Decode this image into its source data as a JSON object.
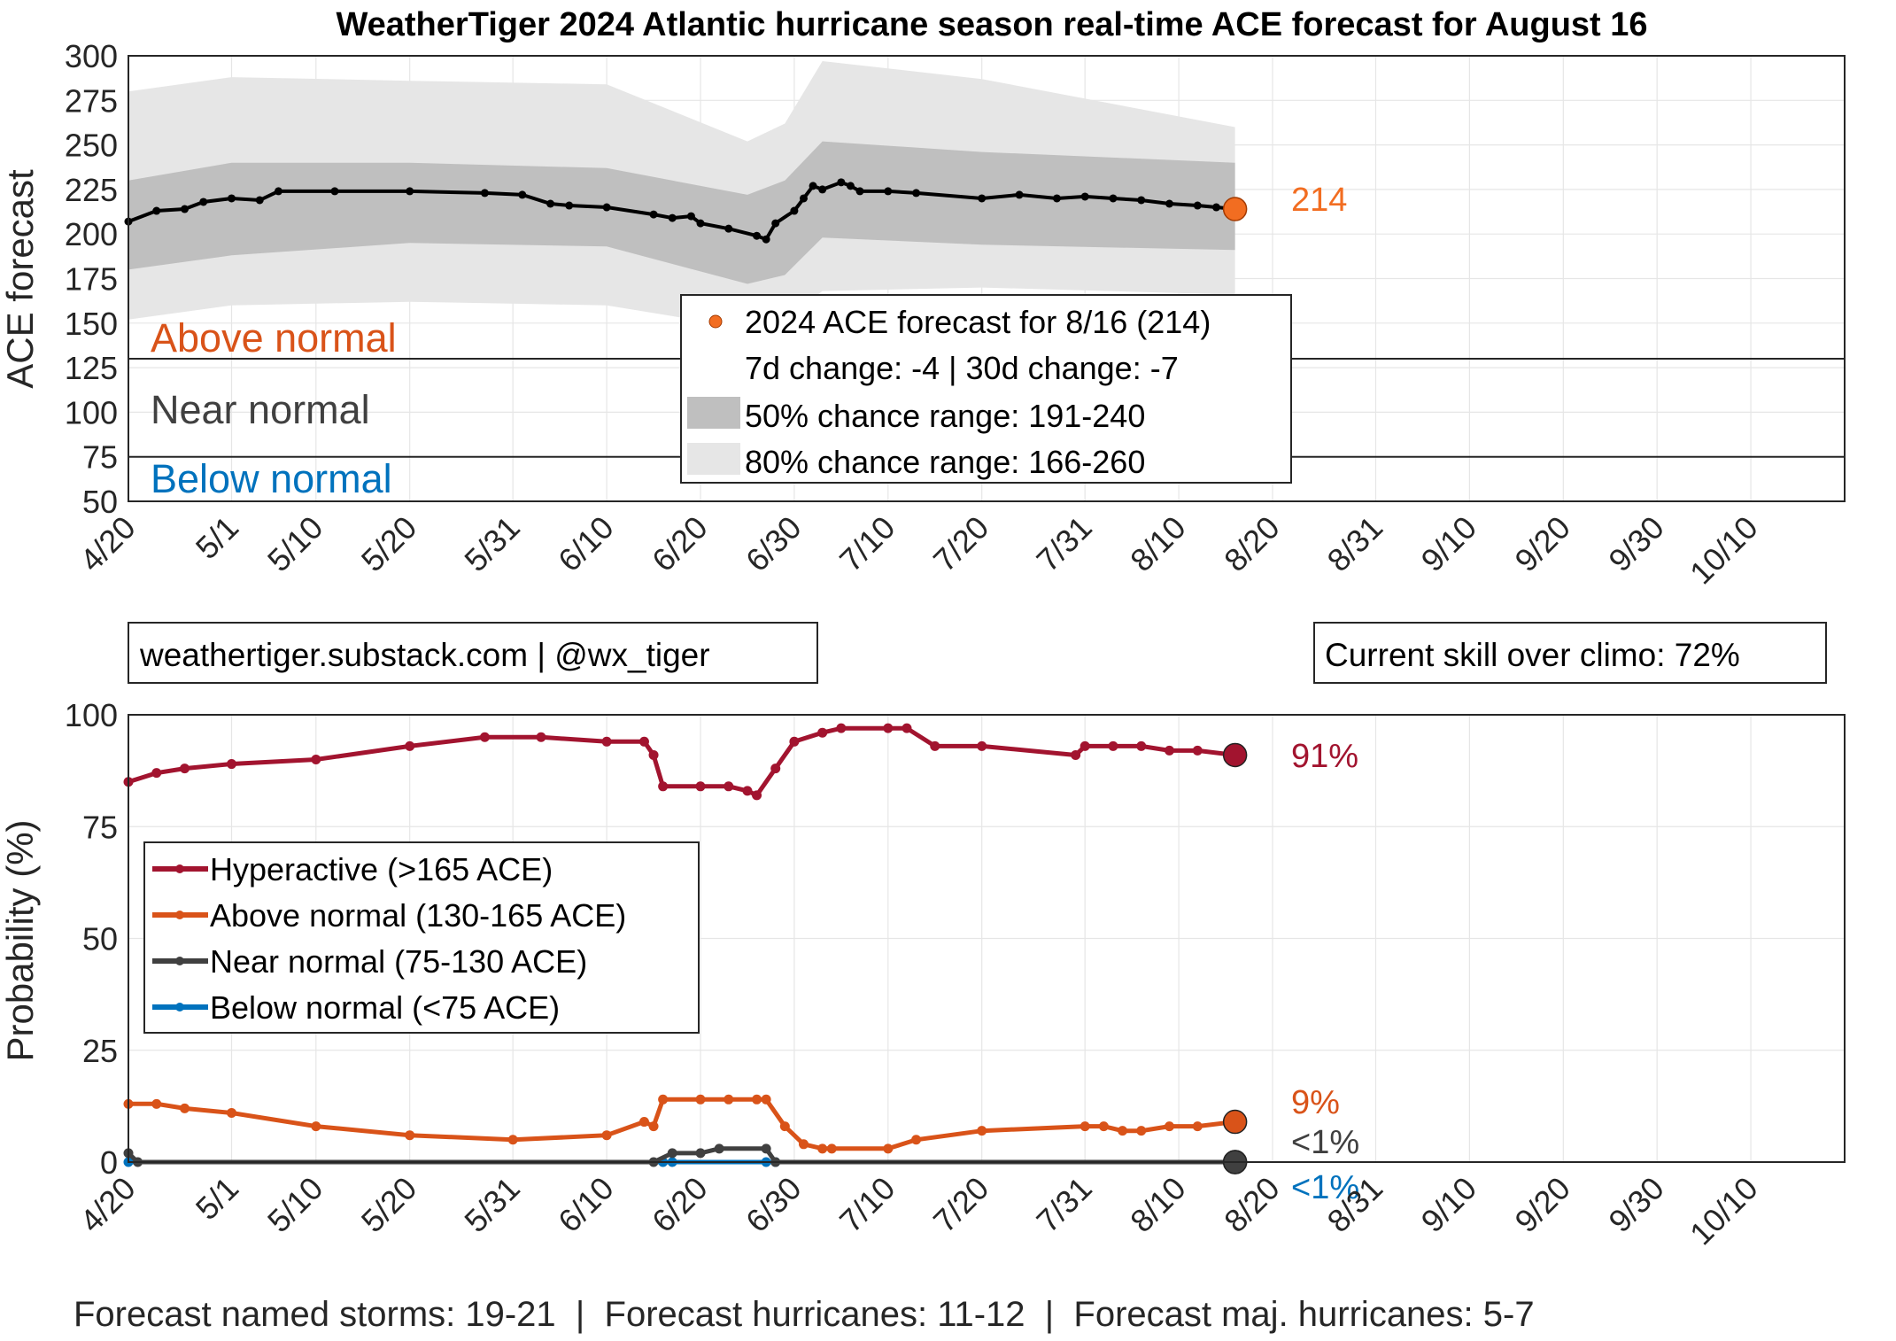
{
  "title": "WeatherTiger 2024 Atlantic hurricane season real-time ACE forecast for August 16",
  "colors": {
    "ace_line": "#000000",
    "band50": "#bfbfbf",
    "band80": "#e6e6e6",
    "current_point": "#f26d21",
    "above_normal": "#d95319",
    "near_normal": "#404040",
    "below_normal": "#0072bd",
    "hyperactive": "#a2142f",
    "grid": "#e6e6e6"
  },
  "x_tick_labels": [
    "4/20",
    "5/1",
    "5/10",
    "5/20",
    "5/31",
    "6/10",
    "6/20",
    "6/30",
    "7/10",
    "7/20",
    "7/31",
    "8/10",
    "8/20",
    "8/31",
    "9/10",
    "9/20",
    "9/30",
    "10/10"
  ],
  "zones": {
    "above": "Above normal",
    "near": "Near normal",
    "below": "Below normal"
  },
  "top_chart": {
    "ylabel": "ACE forecast",
    "end_label": "214",
    "legend": {
      "forecast": "2024 ACE forecast for 8/16 (214)",
      "change": "7d change: -4 | 30d change: -7",
      "band50": "50% chance range: 191-240",
      "band80": "80% chance range: 166-260"
    }
  },
  "info_left": "weathertiger.substack.com | @wx_tiger",
  "info_right": "Current skill over climo: 72%",
  "bottom_chart": {
    "ylabel": "Probability (%)",
    "end_labels": {
      "hyper": "91%",
      "above": "9%",
      "near": "<1%",
      "below": "<1%"
    },
    "legend": {
      "hyper": "Hyperactive (>165 ACE)",
      "above": "Above normal (130-165 ACE)",
      "near": "Near normal (75-130 ACE)",
      "below": "Below normal (<75 ACE)"
    }
  },
  "footer": "Forecast named storms: 19-21  |  Forecast hurricanes: 11-12  |  Forecast maj. hurricanes: 5-7",
  "chart_data": [
    {
      "type": "line",
      "title": "WeatherTiger 2024 Atlantic hurricane season real-time ACE forecast for August 16",
      "ylabel": "ACE forecast",
      "xlabel": "",
      "x_range": [
        "4/20",
        "10/20"
      ],
      "ylim": [
        50,
        300
      ],
      "y_ticks": [
        50,
        75,
        100,
        125,
        150,
        175,
        200,
        225,
        250,
        275,
        300
      ],
      "grid": true,
      "thresholds": [
        {
          "value": 130,
          "label": "Above normal"
        },
        {
          "value": 75,
          "label": "Below normal"
        }
      ],
      "series": [
        {
          "name": "2024 ACE forecast for 8/16 (214)",
          "x": [
            "4/20",
            "4/23",
            "4/26",
            "4/28",
            "5/1",
            "5/4",
            "5/6",
            "5/12",
            "5/20",
            "5/28",
            "6/1",
            "6/4",
            "6/6",
            "6/10",
            "6/15",
            "6/17",
            "6/19",
            "6/20",
            "6/23",
            "6/26",
            "6/27",
            "6/28",
            "6/30",
            "7/1",
            "7/2",
            "7/3",
            "7/5",
            "7/6",
            "7/7",
            "7/10",
            "7/13",
            "7/20",
            "7/24",
            "7/28",
            "7/31",
            "8/3",
            "8/6",
            "8/9",
            "8/12",
            "8/14",
            "8/16"
          ],
          "values": [
            207,
            213,
            214,
            218,
            220,
            219,
            224,
            224,
            224,
            223,
            222,
            217,
            216,
            215,
            211,
            209,
            210,
            206,
            203,
            199,
            197,
            206,
            213,
            220,
            227,
            225,
            229,
            227,
            224,
            224,
            223,
            220,
            222,
            220,
            221,
            220,
            219,
            217,
            216,
            215,
            214
          ]
        },
        {
          "name": "50% chance range: 191-240",
          "x": [
            "4/20",
            "5/1",
            "5/20",
            "6/10",
            "6/25",
            "6/29",
            "7/3",
            "7/20",
            "8/16"
          ],
          "lower": [
            180,
            188,
            195,
            193,
            172,
            177,
            198,
            194,
            191
          ],
          "upper": [
            230,
            240,
            240,
            237,
            222,
            230,
            252,
            246,
            240
          ]
        },
        {
          "name": "80% chance range: 166-260",
          "x": [
            "4/20",
            "5/1",
            "5/20",
            "6/10",
            "6/25",
            "6/29",
            "7/3",
            "7/20",
            "8/16"
          ],
          "lower": [
            152,
            160,
            162,
            160,
            147,
            152,
            168,
            170,
            166
          ],
          "upper": [
            280,
            288,
            286,
            284,
            252,
            262,
            297,
            287,
            260
          ]
        }
      ],
      "current": {
        "x": "8/16",
        "value": 214
      }
    },
    {
      "type": "line",
      "ylabel": "Probability (%)",
      "xlabel": "",
      "x_range": [
        "4/20",
        "10/20"
      ],
      "ylim": [
        0,
        100
      ],
      "y_ticks": [
        0,
        25,
        50,
        75,
        100
      ],
      "grid": true,
      "series": [
        {
          "name": "Hyperactive (>165 ACE)",
          "x": [
            "4/20",
            "4/23",
            "4/26",
            "5/1",
            "5/10",
            "5/20",
            "5/28",
            "6/3",
            "6/10",
            "6/14",
            "6/15",
            "6/16",
            "6/20",
            "6/23",
            "6/25",
            "6/26",
            "6/28",
            "6/30",
            "7/3",
            "7/5",
            "7/10",
            "7/12",
            "7/15",
            "7/20",
            "7/30",
            "7/31",
            "8/3",
            "8/6",
            "8/9",
            "8/12",
            "8/16"
          ],
          "values": [
            85,
            87,
            88,
            89,
            90,
            93,
            95,
            95,
            94,
            94,
            91,
            84,
            84,
            84,
            83,
            82,
            88,
            94,
            96,
            97,
            97,
            97,
            93,
            93,
            91,
            93,
            93,
            93,
            92,
            92,
            91
          ]
        },
        {
          "name": "Above normal (130-165 ACE)",
          "x": [
            "4/20",
            "4/23",
            "4/26",
            "5/1",
            "5/10",
            "5/20",
            "5/31",
            "6/10",
            "6/14",
            "6/15",
            "6/16",
            "6/20",
            "6/23",
            "6/26",
            "6/27",
            "6/29",
            "7/1",
            "7/3",
            "7/4",
            "7/10",
            "7/13",
            "7/20",
            "7/31",
            "8/2",
            "8/4",
            "8/6",
            "8/9",
            "8/12",
            "8/16"
          ],
          "values": [
            13,
            13,
            12,
            11,
            8,
            6,
            5,
            6,
            9,
            8,
            14,
            14,
            14,
            14,
            14,
            8,
            4,
            3,
            3,
            3,
            5,
            7,
            8,
            8,
            7,
            7,
            8,
            8,
            9
          ]
        },
        {
          "name": "Near normal (75-130 ACE)",
          "x": [
            "4/20",
            "4/21",
            "6/15",
            "6/17",
            "6/20",
            "6/22",
            "6/27",
            "6/28",
            "8/16"
          ],
          "values": [
            2,
            0,
            0,
            2,
            2,
            3,
            3,
            0,
            0
          ]
        },
        {
          "name": "Below normal (<75 ACE)",
          "x": [
            "4/20",
            "6/16",
            "6/17",
            "6/27",
            "6/28",
            "8/16"
          ],
          "values": [
            0,
            0,
            0,
            0,
            0,
            0
          ]
        }
      ],
      "current": {
        "x": "8/16",
        "hyper": 91,
        "above": 9,
        "near": 0,
        "below": 0
      }
    }
  ]
}
